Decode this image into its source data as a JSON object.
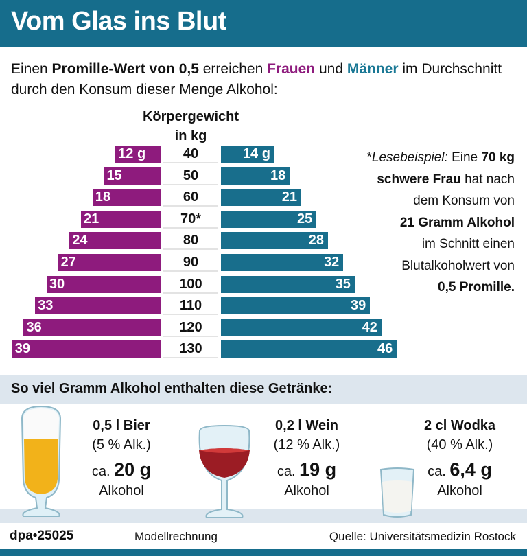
{
  "header": {
    "title": "Vom Glas ins Blut"
  },
  "intro": {
    "p1": "Einen ",
    "p2": "Promille-Wert von 0,5",
    "p3": " erreichen ",
    "women": "Frauen",
    "p4": " und ",
    "men": "Männer",
    "p5": " im Durchschnitt durch den Konsum dieser Menge Alkohol:"
  },
  "chart_data": {
    "type": "bar",
    "orientation": "horizontal-back-to-back",
    "axis_title": "Körpergewicht in kg",
    "axis_title_line1": "Körpergewicht",
    "axis_title_line2": "in kg",
    "categories": [
      "40",
      "50",
      "60",
      "70*",
      "80",
      "90",
      "100",
      "110",
      "120",
      "130"
    ],
    "unit": "g",
    "series": [
      {
        "name": "Frauen",
        "color": "#8e1b7d",
        "side": "left",
        "values": [
          12,
          15,
          18,
          21,
          24,
          27,
          30,
          33,
          36,
          39
        ],
        "labels": [
          "12 g",
          "15",
          "18",
          "21",
          "24",
          "27",
          "30",
          "33",
          "36",
          "39"
        ]
      },
      {
        "name": "Männer",
        "color": "#186e8c",
        "side": "right",
        "values": [
          14,
          18,
          21,
          25,
          28,
          32,
          35,
          39,
          42,
          46
        ],
        "labels": [
          "14 g",
          "18",
          "21",
          "25",
          "28",
          "32",
          "35",
          "39",
          "42",
          "46"
        ]
      }
    ]
  },
  "note": {
    "l1a": "*",
    "l1b": "Lesebeispiel:",
    "l1c": " Eine ",
    "l1d": "70 kg",
    "l2a": "schwere Frau",
    "l2b": " hat nach",
    "l3": "dem Konsum von",
    "l4": "21 Gramm Alkohol",
    "l5": "im Schnitt einen",
    "l6": "Blutalkoholwert von",
    "l7": "0,5 Promille."
  },
  "section": {
    "title": "So viel Gramm Alkohol enthalten diese Getränke:"
  },
  "drinks": [
    {
      "name": "0,5 l Bier",
      "pct": "(5 % Alk.)",
      "ca": "ca.",
      "amount": "20 g",
      "unit": "Alkohol",
      "icon": "beer-glass-icon"
    },
    {
      "name": "0,2 l Wein",
      "pct": "(12 % Alk.)",
      "ca": "ca.",
      "amount": "19 g",
      "unit": "Alkohol",
      "icon": "wine-glass-icon"
    },
    {
      "name": "2 cl Wodka",
      "pct": "(40 % Alk.)",
      "ca": "ca.",
      "amount": "6,4 g",
      "unit": "Alkohol",
      "icon": "shot-glass-icon"
    }
  ],
  "footer": {
    "id": "dpa•25025",
    "model": "Modellrechnung",
    "source": "Quelle: Universitätsmedizin Rostock"
  }
}
